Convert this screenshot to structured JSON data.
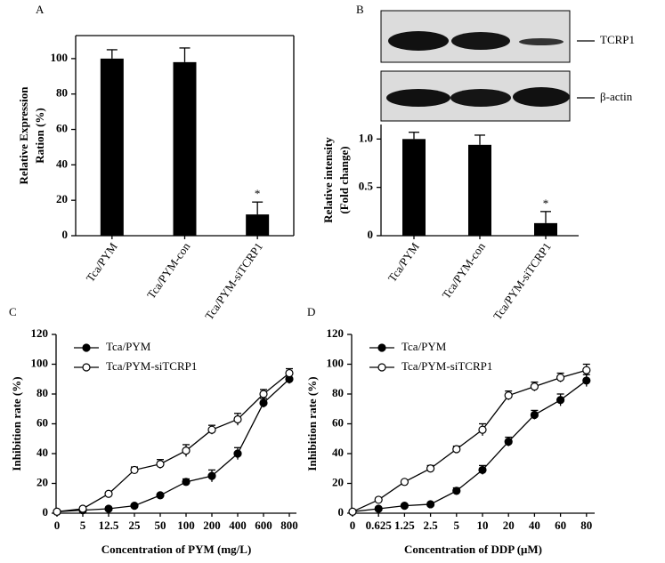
{
  "chart_data": [
    {
      "type": "bar",
      "panel": "A",
      "ylabel": [
        "Relative Expression",
        "Ration (%)"
      ],
      "categories": [
        "Tca/PYM",
        "Tca/PYM-con",
        "Tca/PYM-siTCRP1"
      ],
      "values": [
        100,
        98,
        12
      ],
      "errors": [
        5,
        8,
        7
      ],
      "significance": [
        null,
        null,
        "*"
      ],
      "color": "#000000",
      "ylim": [
        0,
        113
      ],
      "yticks": [
        0,
        20,
        40,
        60,
        80,
        100
      ]
    },
    {
      "type": "bar",
      "panel": "B",
      "ylabel": [
        "Relative intensity",
        "(Fold change)"
      ],
      "blot_labels": [
        "TCRP1",
        "β-actin"
      ],
      "categories": [
        "Tca/PYM",
        "Tca/PYM-con",
        "Tca/PYM-siTCRP1"
      ],
      "values": [
        1.0,
        0.94,
        0.13
      ],
      "errors": [
        0.07,
        0.1,
        0.12
      ],
      "significance": [
        null,
        null,
        "*"
      ],
      "color": "#000000",
      "ylim": [
        0,
        1.15
      ],
      "yticks": [
        0,
        0.5,
        {
          "value": 1,
          "label": "1.0"
        }
      ]
    },
    {
      "type": "line",
      "panel": "C",
      "xlabel": "Concentration of PYM (mg/L)",
      "ylabel": "Inhibition rate (%)",
      "categories": [
        "0",
        "5",
        "12.5",
        "25",
        "50",
        "100",
        "200",
        "400",
        "600",
        "800"
      ],
      "series": [
        {
          "name": "Tca/PYM",
          "color": "#000000",
          "markerfacecolor": "#000000",
          "values": [
            1,
            2,
            3,
            5,
            12,
            21,
            25,
            40,
            74,
            90
          ],
          "errors": [
            1,
            1,
            1,
            1,
            1,
            2,
            4,
            4,
            3,
            3
          ]
        },
        {
          "name": "Tca/PYM-siTCRP1",
          "color": "#000000",
          "markerfacecolor": "#ffffff",
          "values": [
            1,
            3,
            13,
            29,
            33,
            42,
            56,
            63,
            80,
            94
          ],
          "errors": [
            1,
            1,
            1,
            2,
            3,
            4,
            3,
            4,
            3,
            3
          ]
        }
      ],
      "ylim": [
        0,
        120
      ],
      "yticks": [
        0,
        20,
        40,
        60,
        80,
        100,
        120
      ],
      "legend": "upper left"
    },
    {
      "type": "line",
      "panel": "D",
      "xlabel": "Concentration of DDP (μM)",
      "ylabel": "Inhibition rate (%)",
      "categories": [
        "0",
        "0.625",
        "1.25",
        "2.5",
        "5",
        "10",
        "20",
        "40",
        "60",
        "80"
      ],
      "series": [
        {
          "name": "Tca/PYM",
          "color": "#000000",
          "markerfacecolor": "#000000",
          "values": [
            1,
            3,
            5,
            6,
            15,
            29,
            48,
            66,
            76,
            89
          ],
          "errors": [
            1,
            1,
            1,
            1,
            2,
            3,
            3,
            3,
            4,
            4
          ]
        },
        {
          "name": "Tca/PYM-siTCRP1",
          "color": "#000000",
          "markerfacecolor": "#ffffff",
          "values": [
            1,
            9,
            21,
            30,
            43,
            56,
            79,
            85,
            91,
            96
          ],
          "errors": [
            1,
            1,
            1,
            2,
            2,
            4,
            3,
            3,
            3,
            4
          ]
        }
      ],
      "ylim": [
        0,
        120
      ],
      "yticks": [
        0,
        20,
        40,
        60,
        80,
        100,
        120
      ],
      "legend": "upper left"
    }
  ]
}
